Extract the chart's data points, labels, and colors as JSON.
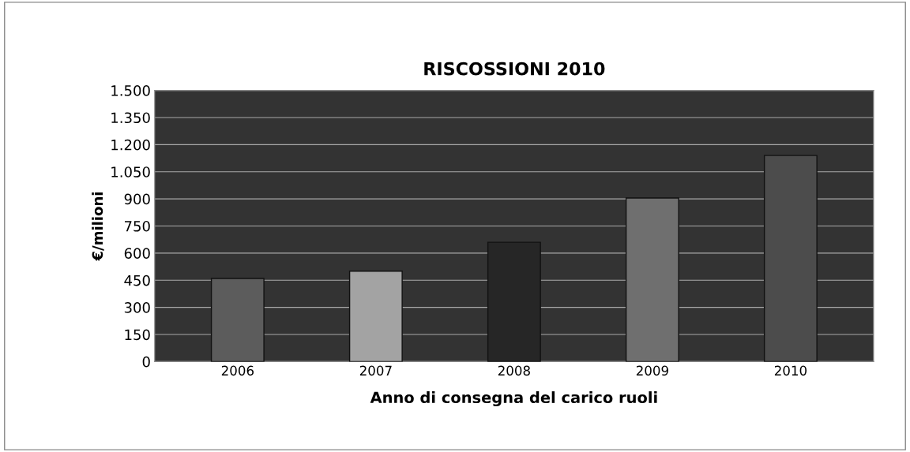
{
  "chart_data": {
    "type": "bar",
    "title": "RISCOSSIONI 2010",
    "xlabel": "Anno di consegna del carico ruoli",
    "ylabel": "€/milioni",
    "categories": [
      "2006",
      "2007",
      "2008",
      "2009",
      "2010"
    ],
    "values": [
      460,
      500,
      660,
      905,
      1140
    ],
    "colors": [
      "#5c5c5c",
      "#a3a3a3",
      "#262626",
      "#6f6f6f",
      "#4c4c4c"
    ],
    "ylim": [
      0,
      1500
    ],
    "yticks": [
      0,
      150,
      300,
      450,
      600,
      750,
      900,
      {
        "value": 1050,
        "label": "1.050"
      },
      {
        "value": 1200,
        "label": "1.200"
      },
      {
        "value": 1350,
        "label": "1.350"
      },
      {
        "value": 1500,
        "label": "1.500"
      }
    ],
    "grid": "y",
    "legend": false
  }
}
